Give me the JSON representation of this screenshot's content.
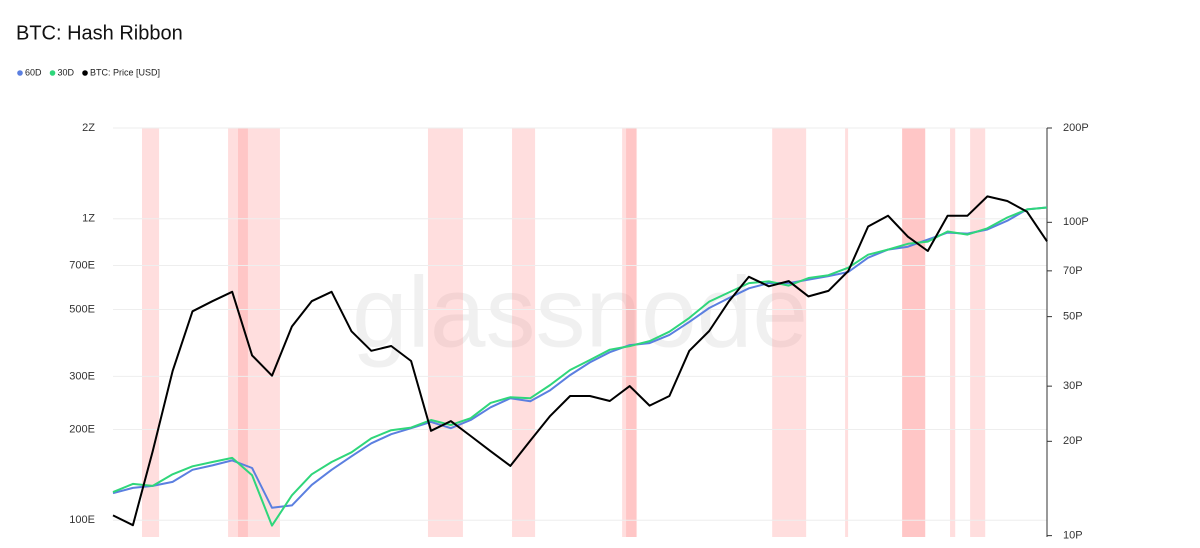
{
  "chart_data": {
    "type": "line",
    "title": "BTC: Hash Ribbon",
    "watermark": "glassnode",
    "log_scale": true,
    "grid": true,
    "ylim": [
      88,
      2000
    ],
    "yticks": [
      {
        "value": 100,
        "label": "100E"
      },
      {
        "value": 200,
        "label": "200E"
      },
      {
        "value": 300,
        "label": "300E"
      },
      {
        "value": 500,
        "label": "500E"
      },
      {
        "value": 700,
        "label": "700E"
      },
      {
        "value": 1000,
        "label": "1Z"
      },
      {
        "value": 2000,
        "label": "2Z"
      }
    ],
    "y2lim": [
      9.9,
      200
    ],
    "y2ticks": [
      {
        "value": 10,
        "label": "10P"
      },
      {
        "value": 20,
        "label": "20P"
      },
      {
        "value": 30,
        "label": "30P"
      },
      {
        "value": 50,
        "label": "50P"
      },
      {
        "value": 70,
        "label": "70P"
      },
      {
        "value": 100,
        "label": "100P"
      },
      {
        "value": 200,
        "label": "200P"
      }
    ],
    "bands": [
      [
        1.46,
        2.32
      ],
      [
        5.79,
        8.4
      ],
      [
        6.29,
        6.79
      ],
      [
        15.85,
        17.61
      ],
      [
        20.08,
        21.24
      ],
      [
        25.62,
        26.37
      ],
      [
        25.82,
        26.32
      ],
      [
        33.17,
        34.88
      ],
      [
        36.84,
        36.99
      ],
      [
        39.71,
        40.87
      ],
      [
        39.71,
        40.87
      ],
      [
        42.12,
        42.38
      ],
      [
        43.13,
        43.89
      ]
    ],
    "band_color": "#ff8a8a",
    "series": [
      {
        "name": "60D",
        "color": "#5b7fe0",
        "values": [
          123,
          128,
          130,
          134,
          147,
          152,
          158,
          149,
          110,
          112,
          131,
          147,
          163,
          180,
          193,
          202,
          212,
          202,
          215,
          237,
          254,
          248,
          270,
          303,
          334,
          361,
          381,
          387,
          412,
          455,
          506,
          546,
          588,
          612,
          612,
          628,
          645,
          666,
          743,
          790,
          808,
          853,
          900,
          893,
          921,
          985,
          1074,
          1090
        ]
      },
      {
        "name": "30D",
        "color": "#2fd67b",
        "values": [
          124,
          132,
          130,
          142,
          151,
          156,
          161,
          141,
          96,
          121,
          142,
          156,
          168,
          187,
          199,
          203,
          215,
          207,
          218,
          245,
          256,
          254,
          281,
          315,
          340,
          368,
          378,
          393,
          422,
          469,
          531,
          570,
          612,
          620,
          600,
          636,
          650,
          688,
          760,
          790,
          826,
          840,
          907,
          886,
          930,
          1010,
          1074,
          1090
        ]
      },
      {
        "name": "BTC: Price [USD]",
        "color": "#000000",
        "axis": "y2",
        "values": [
          11.6,
          10.8,
          18.6,
          33.5,
          52,
          56,
          60,
          37.6,
          32.4,
          46.5,
          56,
          60,
          44.9,
          38.9,
          40.3,
          36.1,
          21.6,
          23.2,
          20.8,
          18.6,
          16.7,
          20.1,
          24.1,
          27.9,
          27.9,
          26.9,
          30,
          26,
          27.9,
          38.9,
          45,
          56,
          67,
          62.5,
          64.9,
          58,
          60.4,
          69.9,
          97,
          105,
          90,
          81,
          105,
          105,
          121,
          117,
          108,
          87
        ]
      }
    ]
  }
}
